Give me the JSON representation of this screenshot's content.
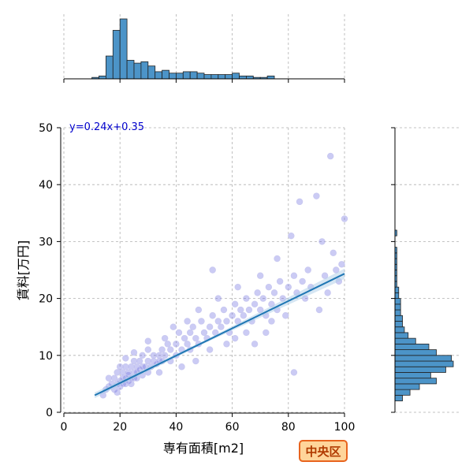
{
  "chart_data": {
    "type": "scatter",
    "xlabel": "専有面積[m2]",
    "ylabel": "賃料[万円]",
    "xlim": [
      0,
      100
    ],
    "ylim": [
      0,
      50
    ],
    "x_ticks": [
      0,
      20,
      40,
      60,
      80,
      100
    ],
    "y_ticks": [
      0,
      10,
      20,
      30,
      40,
      50
    ],
    "grid": true,
    "regression": {
      "label": "y=0.24x+0.35",
      "slope": 0.24,
      "intercept": 0.35,
      "x_range": [
        11,
        100
      ]
    },
    "points": [
      [
        15,
        4
      ],
      [
        16,
        4.5
      ],
      [
        17,
        5
      ],
      [
        18,
        4
      ],
      [
        18,
        6
      ],
      [
        19,
        5
      ],
      [
        19,
        7
      ],
      [
        20,
        5.5
      ],
      [
        20,
        4.5
      ],
      [
        20,
        8
      ],
      [
        21,
        5
      ],
      [
        21,
        6
      ],
      [
        21,
        7
      ],
      [
        22,
        6
      ],
      [
        22,
        5
      ],
      [
        22,
        8
      ],
      [
        23,
        6.5
      ],
      [
        23,
        5.5
      ],
      [
        23,
        7
      ],
      [
        24,
        6
      ],
      [
        24,
        8
      ],
      [
        24,
        5
      ],
      [
        25,
        7
      ],
      [
        25,
        6
      ],
      [
        25,
        9
      ],
      [
        26,
        7
      ],
      [
        26,
        8
      ],
      [
        26,
        6
      ],
      [
        27,
        7.5
      ],
      [
        27,
        9
      ],
      [
        28,
        8
      ],
      [
        28,
        6.5
      ],
      [
        28,
        10
      ],
      [
        29,
        8
      ],
      [
        30,
        9
      ],
      [
        30,
        7
      ],
      [
        30,
        11
      ],
      [
        31,
        8
      ],
      [
        32,
        9
      ],
      [
        32,
        10
      ],
      [
        33,
        8.5
      ],
      [
        34,
        10
      ],
      [
        34,
        9
      ],
      [
        35,
        11
      ],
      [
        35,
        9
      ],
      [
        36,
        10
      ],
      [
        37,
        12
      ],
      [
        38,
        11
      ],
      [
        38,
        9
      ],
      [
        40,
        12
      ],
      [
        40,
        10
      ],
      [
        41,
        14
      ],
      [
        42,
        11
      ],
      [
        43,
        13
      ],
      [
        44,
        12
      ],
      [
        45,
        14
      ],
      [
        45,
        11
      ],
      [
        46,
        15
      ],
      [
        47,
        13
      ],
      [
        48,
        12
      ],
      [
        49,
        16
      ],
      [
        50,
        14
      ],
      [
        51,
        13
      ],
      [
        52,
        15
      ],
      [
        53,
        17
      ],
      [
        54,
        14
      ],
      [
        55,
        16
      ],
      [
        56,
        15
      ],
      [
        57,
        18
      ],
      [
        58,
        16
      ],
      [
        59,
        14
      ],
      [
        60,
        17
      ],
      [
        61,
        19
      ],
      [
        62,
        16
      ],
      [
        63,
        18
      ],
      [
        64,
        17
      ],
      [
        65,
        20
      ],
      [
        66,
        18
      ],
      [
        67,
        16
      ],
      [
        68,
        19
      ],
      [
        69,
        21
      ],
      [
        70,
        18
      ],
      [
        71,
        20
      ],
      [
        72,
        17
      ],
      [
        73,
        22
      ],
      [
        74,
        19
      ],
      [
        75,
        21
      ],
      [
        76,
        18
      ],
      [
        77,
        23
      ],
      [
        78,
        20
      ],
      [
        80,
        22
      ],
      [
        81,
        31
      ],
      [
        82,
        24
      ],
      [
        83,
        21
      ],
      [
        84,
        37
      ],
      [
        85,
        23
      ],
      [
        87,
        25
      ],
      [
        88,
        22
      ],
      [
        90,
        38
      ],
      [
        92,
        30
      ],
      [
        93,
        24
      ],
      [
        95,
        45
      ],
      [
        96,
        28
      ],
      [
        97,
        25
      ],
      [
        98,
        23
      ],
      [
        99,
        26
      ],
      [
        100,
        34
      ],
      [
        14,
        3
      ],
      [
        16,
        6
      ],
      [
        19,
        3.5
      ],
      [
        22,
        9.5
      ],
      [
        25,
        10.5
      ],
      [
        30,
        12.5
      ],
      [
        34,
        7
      ],
      [
        36,
        13
      ],
      [
        39,
        15
      ],
      [
        42,
        8
      ],
      [
        44,
        16
      ],
      [
        48,
        18
      ],
      [
        52,
        11
      ],
      [
        55,
        20
      ],
      [
        58,
        12
      ],
      [
        62,
        22
      ],
      [
        65,
        14
      ],
      [
        70,
        24
      ],
      [
        72,
        14
      ],
      [
        76,
        27
      ],
      [
        79,
        17
      ],
      [
        86,
        20
      ],
      [
        91,
        18
      ],
      [
        94,
        21
      ],
      [
        47,
        9
      ],
      [
        53,
        25
      ],
      [
        61,
        13
      ],
      [
        68,
        12
      ],
      [
        74,
        16
      ],
      [
        82,
        7
      ]
    ],
    "x_hist": {
      "bin_start": 10,
      "bin_width": 2.5,
      "counts": [
        1,
        2,
        16,
        34,
        42,
        13,
        11,
        12,
        9,
        5,
        6,
        4,
        4,
        5,
        5,
        4,
        3,
        3,
        3,
        3,
        4,
        2,
        2,
        1,
        1,
        2
      ]
    },
    "y_hist": {
      "bin_start": 2,
      "bin_width": 1,
      "counts": [
        4,
        8,
        13,
        22,
        19,
        27,
        31,
        30,
        22,
        18,
        11,
        7,
        5,
        4,
        4,
        3,
        3,
        3,
        2,
        2,
        1,
        1,
        1,
        1,
        1,
        1,
        1,
        0,
        0,
        1,
        0,
        0,
        0,
        0,
        0,
        0,
        0,
        0,
        0,
        0,
        0,
        0,
        0,
        0
      ]
    },
    "colors": {
      "point_fill": "#6a6adf",
      "point_stroke": "#c8c8f0",
      "regression_line": "#1f77b4",
      "regression_band": "#aecde8",
      "hist_fill": "#4c94c8",
      "equation_text": "#0000cc"
    }
  },
  "region_badge": "中央区"
}
